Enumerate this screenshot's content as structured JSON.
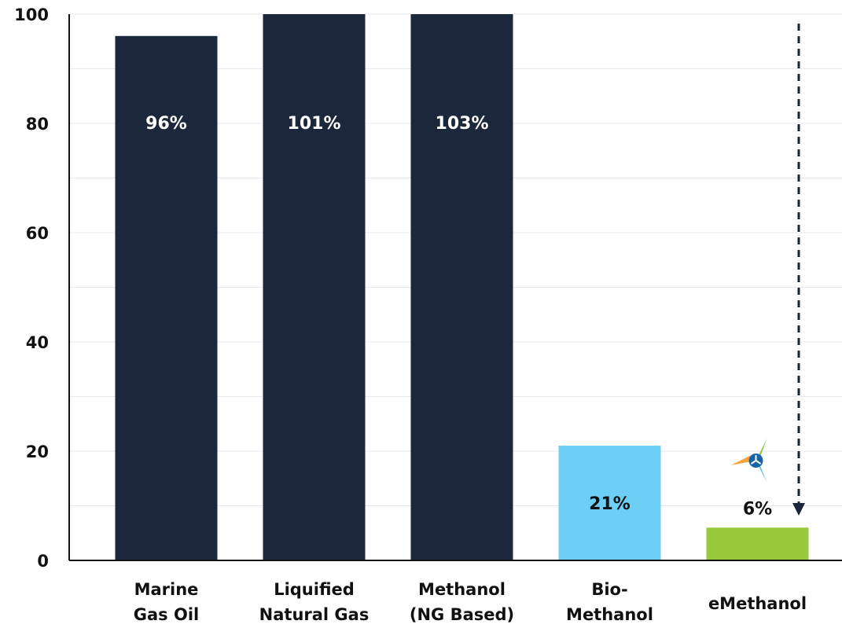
{
  "chart_data": {
    "type": "bar",
    "categories": [
      [
        "Marine",
        "Gas Oil"
      ],
      [
        "Liquified",
        "Natural Gas"
      ],
      [
        "Methanol",
        "(NG Based)"
      ],
      [
        "Bio-",
        "Methanol"
      ],
      [
        "eMethanol"
      ]
    ],
    "values": [
      96,
      101,
      103,
      21,
      6
    ],
    "data_labels": [
      "96%",
      "101%",
      "103%",
      "21%",
      "6%"
    ],
    "colors": [
      "#1b273a",
      "#1b273a",
      "#1b273a",
      "#6dcff6",
      "#9bc93c"
    ],
    "label_colors": [
      "#ffffff",
      "#ffffff",
      "#ffffff",
      "#111111",
      "#111111"
    ],
    "yticks": [
      "0",
      "20",
      "40",
      "60",
      "80",
      "100"
    ],
    "ylim": [
      0,
      100
    ],
    "grid": true,
    "annotations": {
      "arrow": "dashed downward arrow pointing to eMethanol bar",
      "icon": "tri-color leaf/turbine logo above eMethanol"
    },
    "title": "",
    "xlabel": "",
    "ylabel": ""
  }
}
